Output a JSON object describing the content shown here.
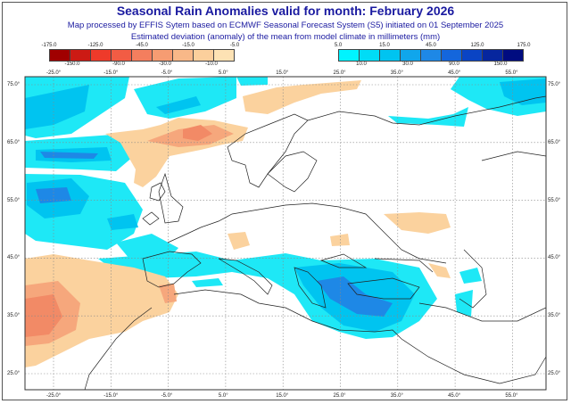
{
  "title": "Seasonal Rain Anomalies valid for month: February 2026",
  "subtitle1": "Map processed by EFFIS Sytem based on ECMWF Seasonal Forecast System (S5) initiated on 01 September 2025",
  "subtitle2": "Estimated deviation (anomaly) of the mean from model climate in millimeters (mm)",
  "legend_dry": {
    "ticks": [
      "-175.0",
      "-150.0",
      "-125.0",
      "-90.0",
      "-45.0",
      "-30.0",
      "-15.0",
      "-10.0",
      "-5.0"
    ],
    "colors": [
      "#a00000",
      "#cc1a14",
      "#ee3a2a",
      "#f25c44",
      "#f47e5e",
      "#f69c72",
      "#f8b888",
      "#fbcf9c",
      "#fde2b4"
    ]
  },
  "legend_wet": {
    "ticks": [
      "5.0",
      "10.0",
      "15.0",
      "30.0",
      "45.0",
      "90.0",
      "125.0",
      "150.0",
      "175.0"
    ],
    "colors": [
      "#00f4ff",
      "#00dcf6",
      "#00c4f0",
      "#10a6ec",
      "#1e88e6",
      "#1466dc",
      "#0a44c4",
      "#06269e",
      "#000c80"
    ]
  },
  "map": {
    "lon_labels": [
      "-25.0°",
      "-15.0°",
      "-5.0°",
      "5.0°",
      "15.0°",
      "25.0°",
      "35.0°",
      "45.0°",
      "55.0°"
    ],
    "lat_labels": [
      "75.0°",
      "65.0°",
      "55.0°",
      "45.0°",
      "35.0°",
      "25.0°"
    ]
  }
}
